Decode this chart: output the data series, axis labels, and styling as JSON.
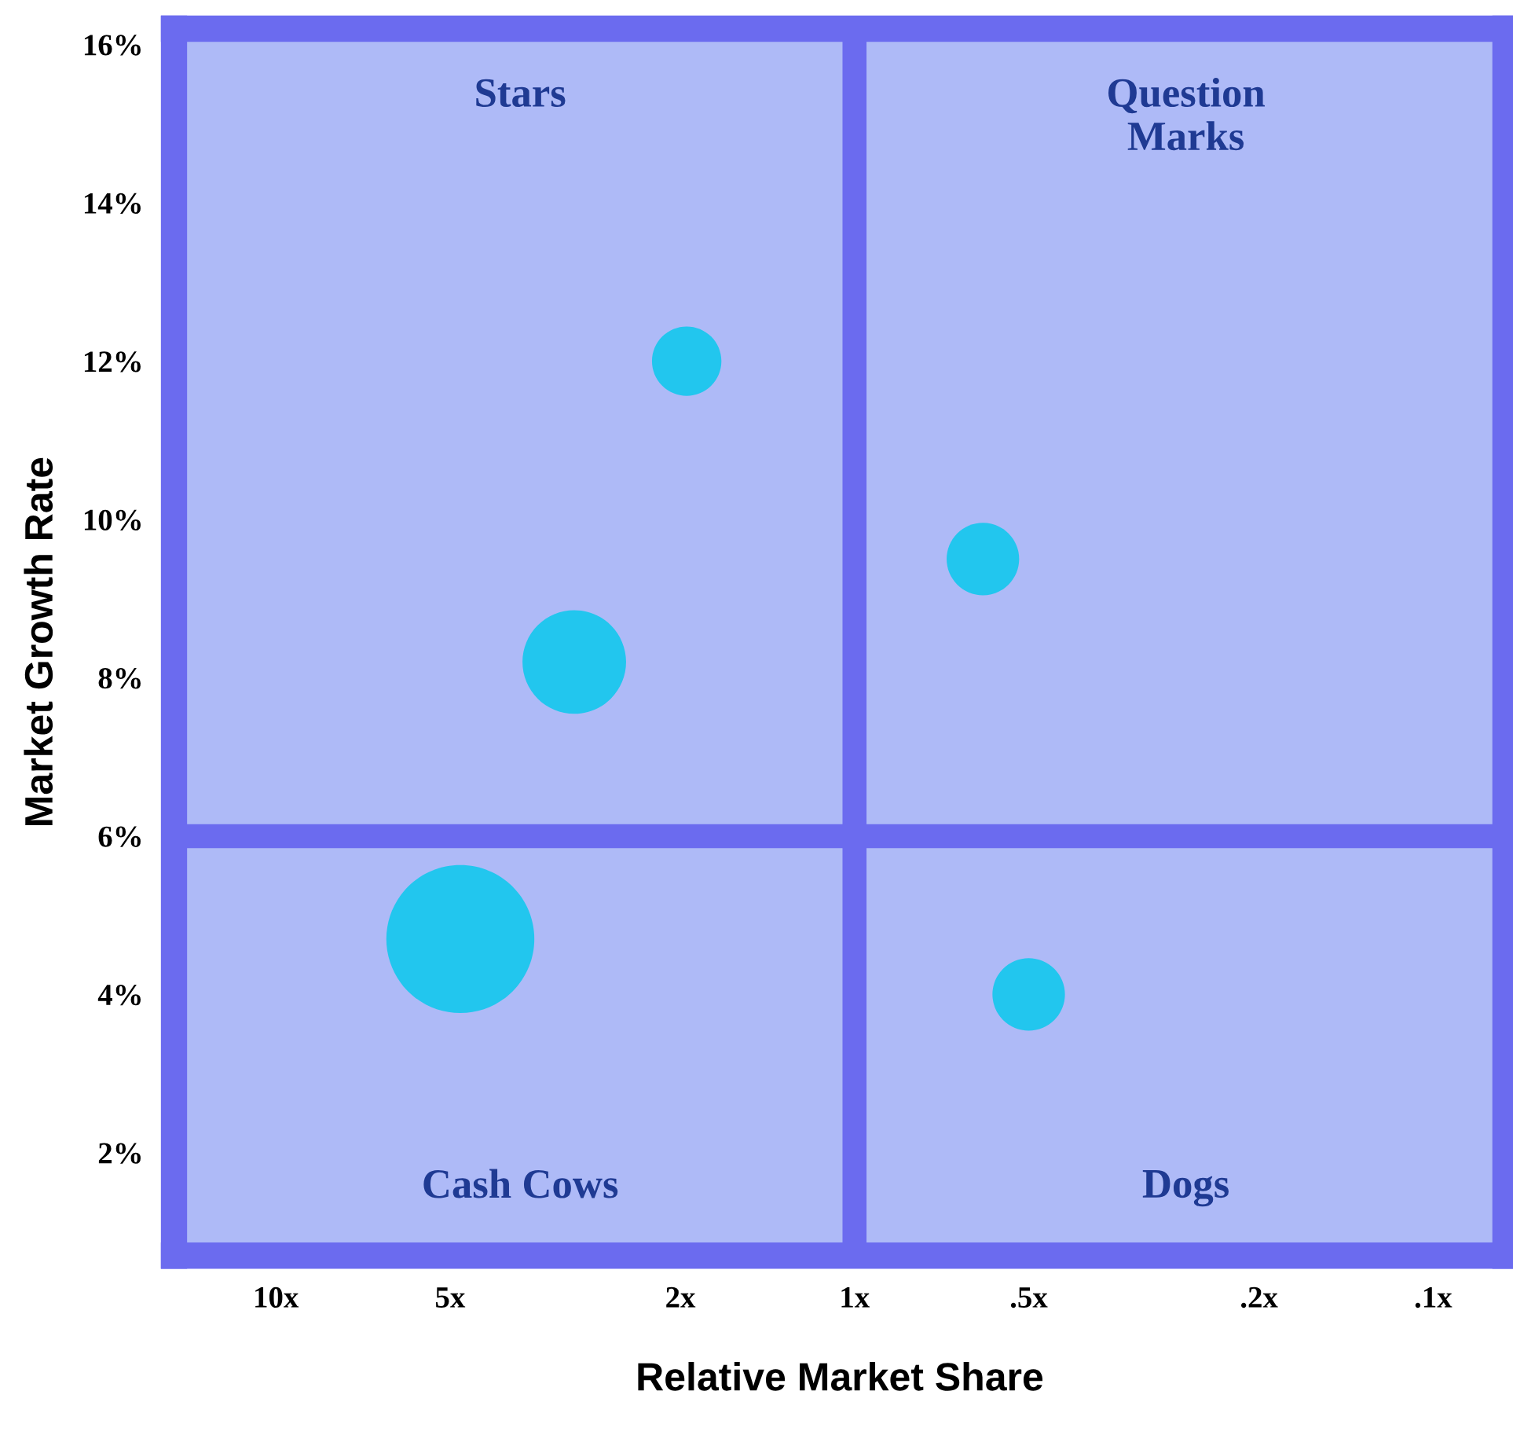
{
  "chart_data": {
    "type": "bubble",
    "xlabel": "Relative Market Share",
    "ylabel": "Market Growth Rate",
    "x": [
      1.95,
      3.05,
      4.8,
      0.6,
      0.5
    ],
    "values": [
      12,
      8.2,
      4.7,
      9.5,
      4
    ],
    "sizes": [
      0.22,
      0.49,
      1,
      0.24,
      0.24
    ],
    "color": "#22c6ee",
    "log": "x",
    "xlim": [
      15,
      0.075
    ],
    "xticks": [
      {
        "value": 10,
        "label": "10x"
      },
      {
        "value": 5,
        "label": "5x"
      },
      {
        "value": 2,
        "label": "2x"
      },
      {
        "value": 1,
        "label": "1x"
      },
      {
        "value": 0.5,
        "label": ".5x"
      },
      {
        "value": 0.2,
        "label": ".2x"
      },
      {
        "value": 0.1,
        "label": ".1x"
      }
    ],
    "ylim": [
      0.7,
      16.2
    ],
    "yticks": [
      {
        "value": 2,
        "label": "2%"
      },
      {
        "value": 4,
        "label": "4%"
      },
      {
        "value": 6,
        "label": "6%"
      },
      {
        "value": 8,
        "label": "8%"
      },
      {
        "value": 10,
        "label": "10%"
      },
      {
        "value": 12,
        "label": "12%"
      },
      {
        "value": 14,
        "label": "14%"
      },
      {
        "value": 16,
        "label": "16%"
      }
    ],
    "ref_lines": [
      {
        "axis": "x",
        "value": 1,
        "color": "#6b6bef"
      },
      {
        "axis": "y",
        "value": 6,
        "color": "#6b6bef"
      }
    ],
    "annotations": [
      "Stars",
      "Question\nMarks",
      "Cash Cows",
      "Dogs"
    ],
    "grid": false,
    "legend": false
  }
}
